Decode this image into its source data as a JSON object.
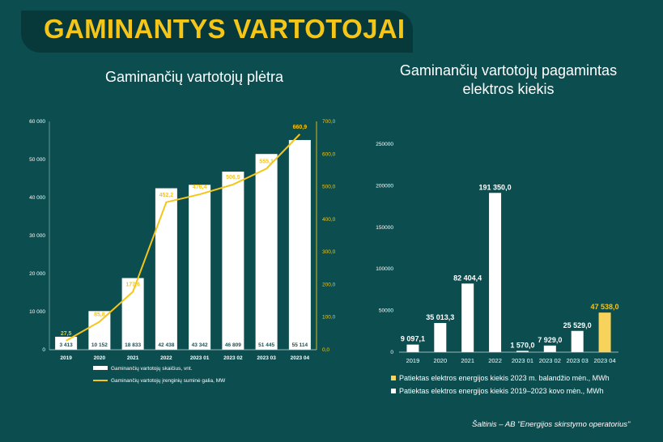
{
  "header": {
    "title": "GAMINANTYS VARTOTOJAI",
    "left_subtitle": "Gaminančių vartotojų plėtra",
    "right_subtitle_line1": "Gaminančių vartotojų pagamintas",
    "right_subtitle_line2": "elektros kiekis",
    "source": "Šaltinis – AB \"Energijos skirstymo operatorius\""
  },
  "colors": {
    "background": "#0c4d50",
    "title_band": "#07393b",
    "accent_yellow": "#f5c518",
    "bar_white": "#ffffff",
    "highlight_bar": "#f7d35b"
  },
  "chart_data": [
    {
      "type": "bar",
      "categories": [
        "2019",
        "2020",
        "2021",
        "2022",
        "2023 01",
        "2023 02",
        "2023 03",
        "2023 04"
      ],
      "series": [
        {
          "name": "Gaminančių vartotojų skaičius, vnt.",
          "type": "bar",
          "axis": "left",
          "values": [
            3413,
            10152,
            18833,
            42438,
            43342,
            46809,
            51445,
            55114
          ],
          "labels": [
            "3 413",
            "10 152",
            "18 833",
            "42 438",
            "43 342",
            "46 809",
            "51 445",
            "55 114"
          ]
        },
        {
          "name": "Gaminančių vartotojų įrenginių suminė galia, MW",
          "type": "line",
          "axis": "right",
          "values": [
            27.5,
            85.8,
            177.6,
            452.2,
            476.4,
            506.5,
            555.1,
            660.9
          ],
          "labels": [
            "27,5",
            "85,8",
            "177,6",
            "452,2",
            "476,4",
            "506,5",
            "555,1",
            "660,9"
          ]
        }
      ],
      "ylim_left": [
        0,
        60000
      ],
      "yticks_left": [
        "0",
        "10 000",
        "20 000",
        "30 000",
        "40 000",
        "50 000",
        "60 000"
      ],
      "ylim_right": [
        0,
        700
      ],
      "yticks_right": [
        "0,0",
        "100,0",
        "200,0",
        "300,0",
        "400,0",
        "500,0",
        "600,0",
        "700,0"
      ],
      "legend_position": "bottom-left"
    },
    {
      "type": "bar",
      "categories": [
        "2019",
        "2020",
        "2021",
        "2022",
        "2023 01",
        "2023 02",
        "2023 03",
        "2023 04"
      ],
      "values": [
        9097.1,
        35013.3,
        82404.4,
        191350.0,
        1570.0,
        7929.0,
        25529.0,
        47538.0
      ],
      "labels": [
        "9 097,1",
        "35 013,3",
        "82 404,4",
        "191 350,0",
        "1 570,0",
        "7 929,0",
        "25 529,0",
        "47 538,0"
      ],
      "highlight_index": 7,
      "ylim": [
        0,
        250000
      ],
      "yticks": [
        "0",
        "50000",
        "100000",
        "150000",
        "200000",
        "250000"
      ],
      "legend": [
        "Patiektas elektros energijos kiekis 2023 m. balandžio mėn., MWh",
        "Patiektas elektros energijos kiekis 2019–2023 kovo mėn., MWh"
      ],
      "legend_position": "bottom"
    }
  ]
}
